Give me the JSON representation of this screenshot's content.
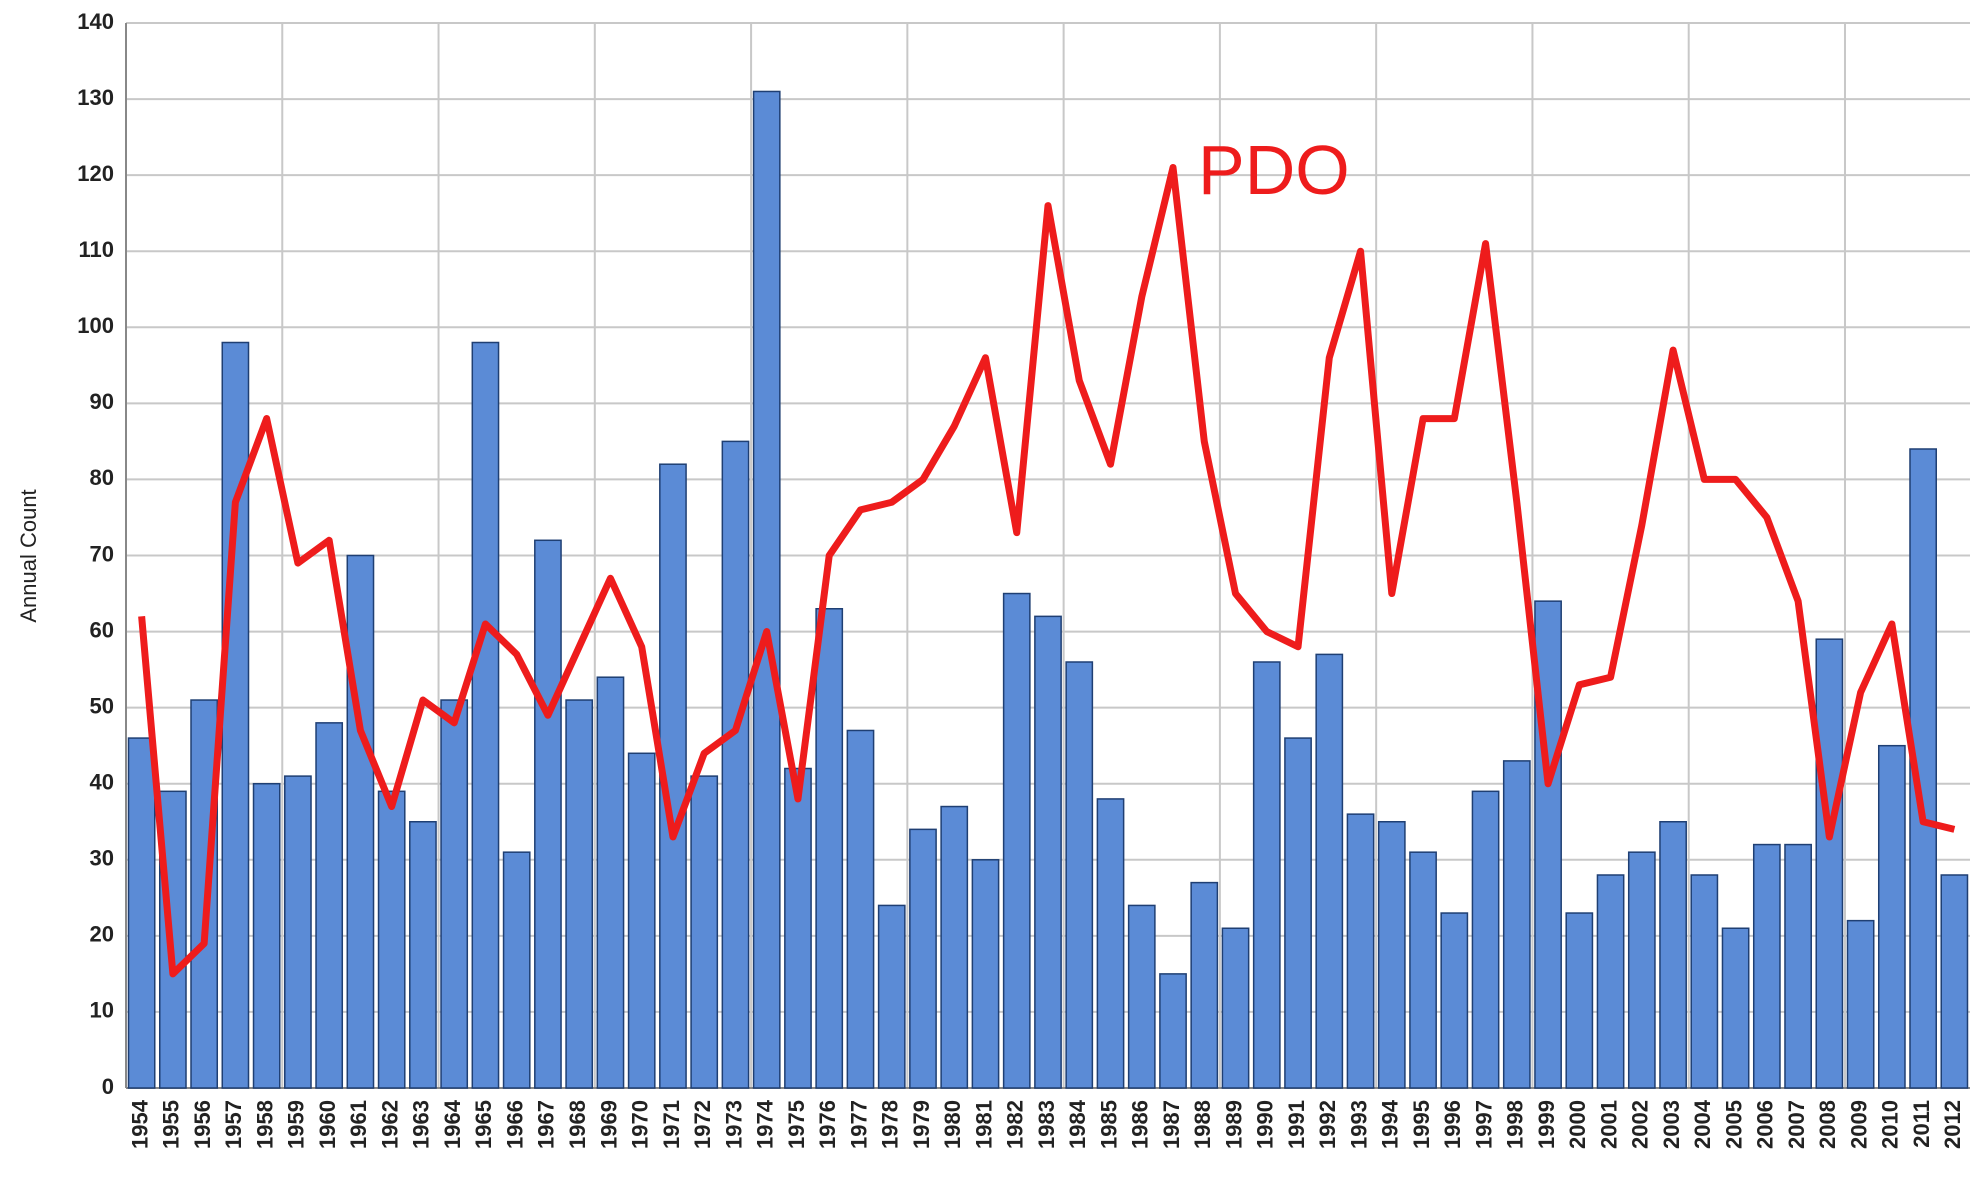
{
  "chart_data": {
    "type": "bar-line",
    "ylabel": "Annual Count",
    "categories": [
      "1954",
      "1955",
      "1956",
      "1957",
      "1958",
      "1959",
      "1960",
      "1961",
      "1962",
      "1963",
      "1964",
      "1965",
      "1966",
      "1967",
      "1968",
      "1969",
      "1970",
      "1971",
      "1972",
      "1973",
      "1974",
      "1975",
      "1976",
      "1977",
      "1978",
      "1979",
      "1980",
      "1981",
      "1982",
      "1983",
      "1984",
      "1985",
      "1986",
      "1987",
      "1988",
      "1989",
      "1990",
      "1991",
      "1992",
      "1993",
      "1994",
      "1995",
      "1996",
      "1997",
      "1998",
      "1999",
      "2000",
      "2001",
      "2002",
      "2003",
      "2004",
      "2005",
      "2006",
      "2007",
      "2008",
      "2009",
      "2010",
      "2011",
      "2012"
    ],
    "series": [
      {
        "type": "bar",
        "color": "#5b8bd6",
        "values": [
          46,
          39,
          51,
          98,
          40,
          41,
          48,
          70,
          39,
          35,
          51,
          98,
          31,
          72,
          51,
          54,
          44,
          82,
          41,
          85,
          131,
          42,
          63,
          47,
          24,
          34,
          37,
          30,
          65,
          62,
          56,
          38,
          24,
          15,
          27,
          21,
          56,
          46,
          57,
          36,
          35,
          31,
          23,
          39,
          43,
          64,
          23,
          28,
          31,
          35,
          28,
          21,
          32,
          32,
          59,
          22,
          45,
          84,
          28
        ]
      },
      {
        "type": "line",
        "name": "PDO",
        "color": "#ee1c1c",
        "values": [
          62,
          15,
          19,
          77,
          88,
          69,
          72,
          47,
          37,
          51,
          48,
          61,
          57,
          49,
          58,
          67,
          58,
          33,
          44,
          47,
          60,
          38,
          70,
          76,
          77,
          80,
          87,
          96,
          73,
          116,
          93,
          82,
          104,
          121,
          85,
          65,
          60,
          58,
          96,
          110,
          65,
          88,
          88,
          111,
          77,
          40,
          53,
          54,
          74,
          97,
          80,
          80,
          75,
          64,
          33,
          52,
          61,
          35,
          34
        ]
      }
    ],
    "ylim": [
      0,
      140
    ],
    "yticks": [
      0,
      10,
      20,
      30,
      40,
      50,
      60,
      70,
      80,
      90,
      100,
      110,
      120,
      130,
      140
    ],
    "grid": true
  }
}
